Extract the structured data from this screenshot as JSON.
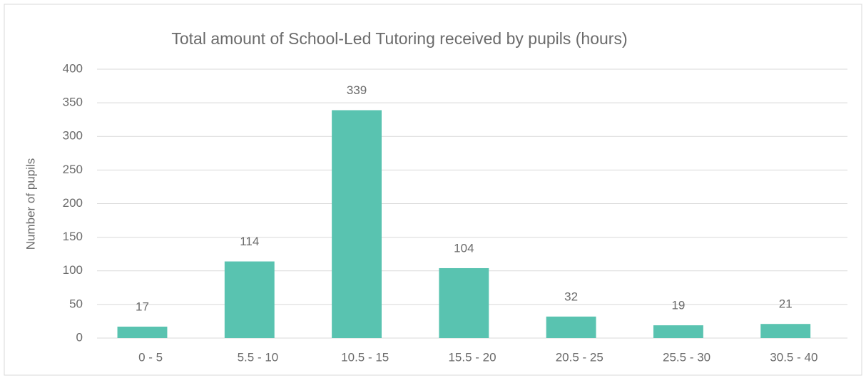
{
  "chart_data": {
    "type": "bar",
    "title": "Total amount of School-Led Tutoring received by pupils (hours)",
    "ylabel": "Number of pupils",
    "categories": [
      "0 - 5",
      "5.5 - 10",
      "10.5 - 15",
      "15.5 - 20",
      "20.5 - 25",
      "25.5 - 30",
      "30.5 - 40"
    ],
    "values": [
      17,
      114,
      339,
      104,
      32,
      19,
      21
    ],
    "color": "#59c3b0",
    "ylim": [
      0,
      400
    ],
    "yticks": [
      0,
      50,
      100,
      150,
      200,
      250,
      300,
      350,
      400
    ],
    "grid": true
  }
}
